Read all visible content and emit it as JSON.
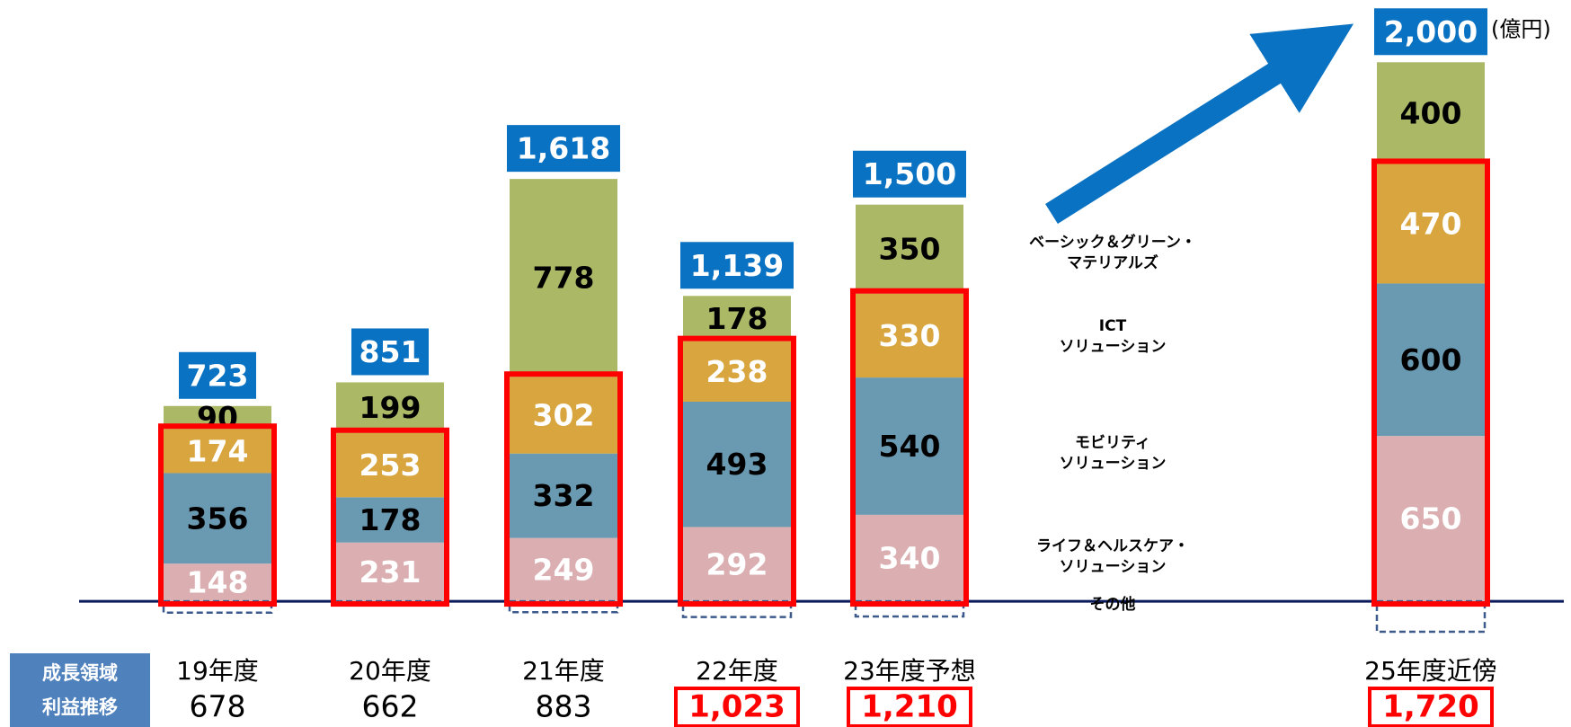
{
  "chart_data": {
    "type": "bar",
    "stacked": true,
    "unit": "(億円)",
    "categories": [
      "19年度",
      "20年度",
      "21年度",
      "22年度",
      "23年度予想",
      "25年度近傍"
    ],
    "ylim": [
      -150,
      2250
    ],
    "series": [
      {
        "name": "ライフ＆ヘルスケア・\nソリューション",
        "color": "#dbafb1",
        "label_color": "#ffffff",
        "growth": true,
        "values": [
          148,
          231,
          249,
          292,
          340,
          650
        ]
      },
      {
        "name": "モビリティ\nソリューション",
        "color": "#6a9ab1",
        "label_color": "#000000",
        "growth": true,
        "values": [
          356,
          178,
          332,
          493,
          540,
          600
        ]
      },
      {
        "name": "ICT\nソリューション",
        "color": "#d8a53e",
        "label_color": "#ffffff",
        "growth": true,
        "values": [
          174,
          253,
          302,
          238,
          330,
          470
        ]
      },
      {
        "name": "ベーシック＆グリーン・\nマテリアルズ",
        "color": "#abb865",
        "label_color": "#000000",
        "growth": false,
        "values": [
          90,
          199,
          778,
          178,
          350,
          400
        ]
      },
      {
        "name": "その他",
        "color": "#3c5a8c",
        "dashed": true,
        "values": [
          -45,
          -10,
          -43,
          -62,
          -60,
          -120
        ]
      }
    ],
    "totals": {
      "color": "#0a72c2",
      "values": [
        723,
        851,
        1618,
        1139,
        1500,
        2000
      ],
      "value_labels": [
        "723",
        "851",
        "1,618",
        "1,139",
        "1,500",
        "2,000"
      ]
    },
    "growth_profit": {
      "label": "成長領域\n利益推移",
      "color": "#4f81bd",
      "values": [
        678,
        662,
        883,
        1023,
        1210,
        1720
      ],
      "value_labels": [
        "678",
        "662",
        "883",
        "1,023",
        "1,210",
        "1,720"
      ],
      "highlight": [
        false,
        false,
        false,
        true,
        true,
        true
      ]
    }
  }
}
